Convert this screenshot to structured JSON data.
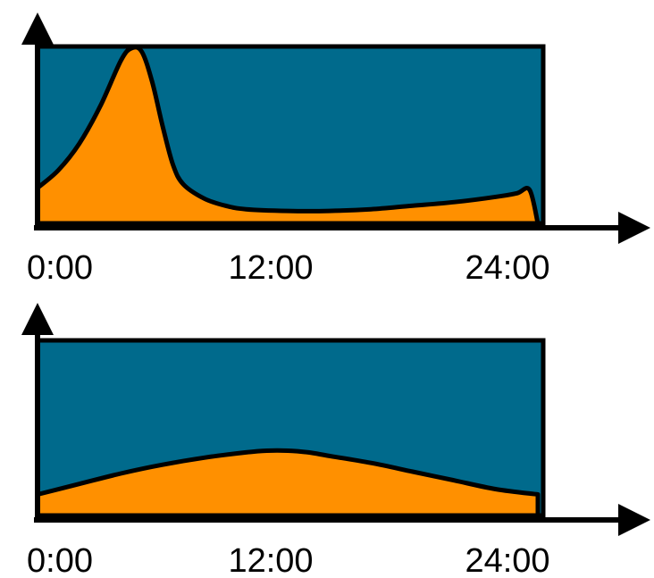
{
  "colors": {
    "background_area": "#006a8c",
    "fill_area": "#ff9000",
    "outline": "#000000",
    "axis": "#000000"
  },
  "chart_data": [
    {
      "type": "area",
      "title": "",
      "xlabel": "",
      "ylabel": "",
      "x_ticks": [
        "0:00",
        "12:00",
        "24:00"
      ],
      "xlim": [
        0,
        24
      ],
      "ylim": [
        0,
        1
      ],
      "grid": false,
      "legend": "none",
      "series": [
        {
          "x": [
            0,
            1,
            2,
            3,
            4,
            4.5,
            5,
            5.5,
            6,
            6.5,
            7,
            8,
            9,
            10,
            12,
            14,
            16,
            18,
            20,
            22,
            23,
            23.6,
            24
          ],
          "y": [
            0.2,
            0.3,
            0.45,
            0.66,
            0.92,
            0.99,
            0.97,
            0.8,
            0.55,
            0.33,
            0.22,
            0.14,
            0.1,
            0.08,
            0.07,
            0.07,
            0.08,
            0.1,
            0.12,
            0.15,
            0.17,
            0.19,
            0.0
          ]
        }
      ]
    },
    {
      "type": "area",
      "title": "",
      "xlabel": "",
      "ylabel": "",
      "x_ticks": [
        "0:00",
        "12:00",
        "24:00"
      ],
      "xlim": [
        0,
        24
      ],
      "ylim": [
        0,
        1
      ],
      "grid": false,
      "legend": "none",
      "series": [
        {
          "x": [
            0,
            2,
            4,
            6,
            8,
            10,
            11,
            12,
            13,
            14,
            16,
            18,
            20,
            22,
            24
          ],
          "y": [
            0.12,
            0.18,
            0.24,
            0.29,
            0.33,
            0.36,
            0.37,
            0.37,
            0.36,
            0.34,
            0.3,
            0.25,
            0.2,
            0.15,
            0.12
          ]
        }
      ]
    }
  ]
}
